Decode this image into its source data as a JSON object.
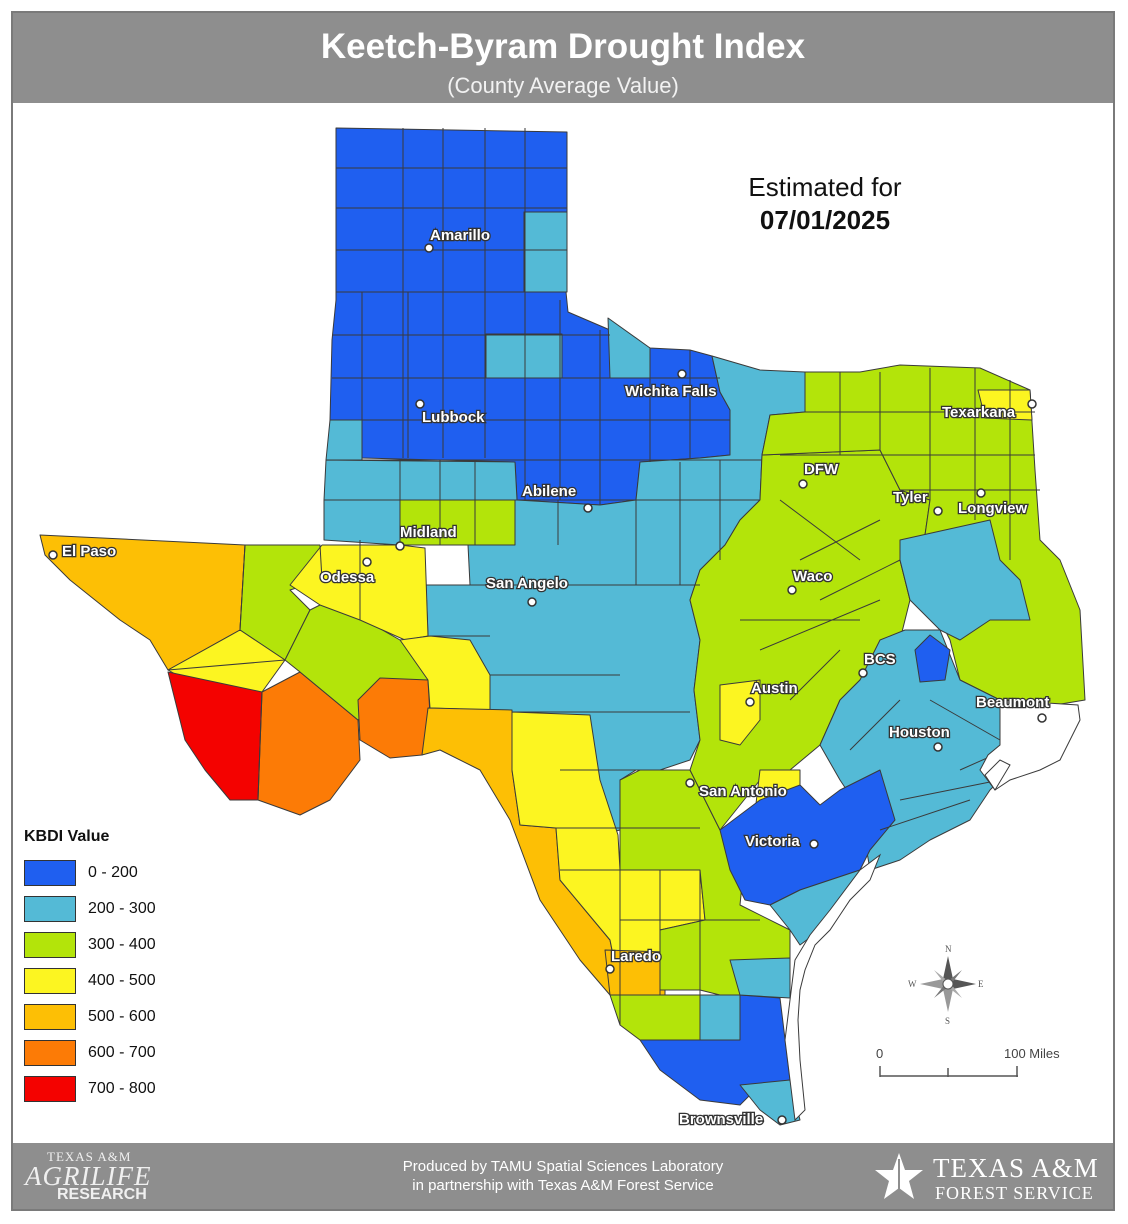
{
  "header": {
    "title": "Keetch-Byram Drought Index",
    "subtitle": "(County Average Value)"
  },
  "estimate": {
    "label": "Estimated for",
    "date": "07/01/2025"
  },
  "legend": {
    "title": "KBDI Value",
    "items": [
      {
        "label": "0 - 200",
        "color": "#1f5ff0"
      },
      {
        "label": "200 - 300",
        "color": "#54bad6"
      },
      {
        "label": "300 - 400",
        "color": "#b3e40a"
      },
      {
        "label": "400 - 500",
        "color": "#fcf521"
      },
      {
        "label": "500 - 600",
        "color": "#fdbf05"
      },
      {
        "label": "600 - 700",
        "color": "#fc7b06"
      },
      {
        "label": "700 - 800",
        "color": "#f40200"
      }
    ]
  },
  "cities": [
    {
      "name": "Amarillo"
    },
    {
      "name": "Lubbock"
    },
    {
      "name": "Wichita Falls"
    },
    {
      "name": "Texarkana"
    },
    {
      "name": "DFW"
    },
    {
      "name": "Tyler"
    },
    {
      "name": "Longview"
    },
    {
      "name": "Abilene"
    },
    {
      "name": "Midland"
    },
    {
      "name": "Odessa"
    },
    {
      "name": "El Paso"
    },
    {
      "name": "San Angelo"
    },
    {
      "name": "Waco"
    },
    {
      "name": "BCS"
    },
    {
      "name": "Austin"
    },
    {
      "name": "Beaumont"
    },
    {
      "name": "Houston"
    },
    {
      "name": "San Antonio"
    },
    {
      "name": "Victoria"
    },
    {
      "name": "Laredo"
    },
    {
      "name": "Brownsville"
    }
  ],
  "scale": {
    "start": "0",
    "end": "100 Miles"
  },
  "compass": {
    "n": "N",
    "s": "S",
    "e": "E",
    "w": "W"
  },
  "footer": {
    "credit_line1": "Produced by TAMU Spatial Sciences Laboratory",
    "credit_line2": "in partnership with Texas A&M Forest Service",
    "agrilife_line1": "TEXAS A&M",
    "agrilife_line2": "AGRILIFE",
    "agrilife_line3": "RESEARCH",
    "tfs_line1": "TEXAS A&M",
    "tfs_line2": "FOREST SERVICE"
  }
}
